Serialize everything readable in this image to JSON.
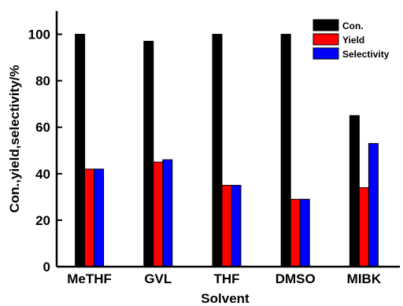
{
  "chart_data": {
    "type": "bar",
    "title": "",
    "xlabel": "Solvent",
    "ylabel": "Con.,yield,selectivity/%",
    "ylim": [
      0,
      110
    ],
    "yticks": [
      0,
      20,
      40,
      60,
      80,
      100
    ],
    "categories": [
      "MeTHF",
      "GVL",
      "THF",
      "DMSO",
      "MIBK"
    ],
    "series": [
      {
        "name": "Con.",
        "color": "#000000",
        "values": [
          100,
          97,
          100,
          100,
          65
        ]
      },
      {
        "name": "Yield",
        "color": "#ff0000",
        "values": [
          42,
          45,
          35,
          29,
          34
        ]
      },
      {
        "name": "Selectivity",
        "color": "#0000ff",
        "values": [
          42,
          46,
          35,
          29,
          53
        ]
      }
    ],
    "legend": "top-right",
    "grid": false
  }
}
